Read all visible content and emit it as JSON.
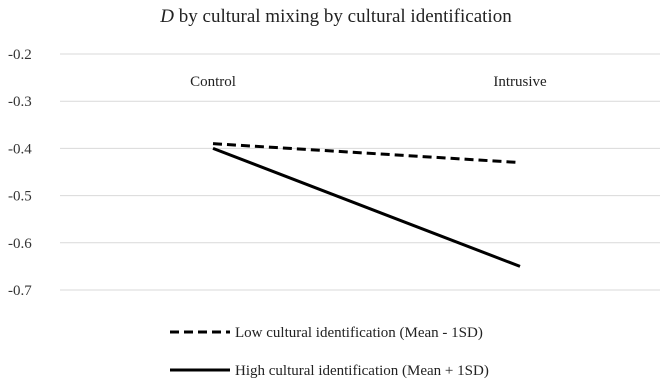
{
  "chart_data": {
    "type": "line",
    "title": {
      "italic_part": "D",
      "rest": " by cultural mixing by cultural identification"
    },
    "categories": [
      "Control",
      "Intrusive"
    ],
    "yticks": [
      "-0.2",
      "-0.3",
      "-0.4",
      "-0.5",
      "-0.6",
      "-0.7"
    ],
    "ylim": [
      -0.7,
      -0.2
    ],
    "grid": true,
    "legend_position": "bottom",
    "series": [
      {
        "name": "Low cultural identification (Mean - 1SD)",
        "values": [
          -0.39,
          -0.43
        ],
        "line_style": "dashed",
        "color": "#000000"
      },
      {
        "name": "High cultural identification (Mean + 1SD)",
        "values": [
          -0.4,
          -0.65
        ],
        "line_style": "solid",
        "color": "#000000"
      }
    ]
  }
}
